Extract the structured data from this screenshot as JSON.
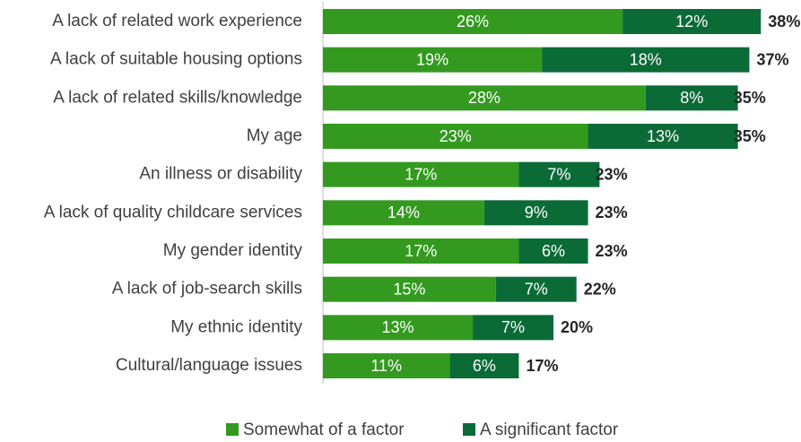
{
  "chart_data": {
    "type": "stacked_barh",
    "categories": [
      "A lack of related work experience",
      "A lack of suitable housing options",
      "A lack of related skills/knowledge",
      "My age",
      "An illness or disability",
      "A lack of quality childcare services",
      "My gender identity",
      "A lack of job-search skills",
      "My ethnic identity",
      "Cultural/language issues"
    ],
    "series": [
      {
        "name": "Somewhat of a factor",
        "color": "#339a1f",
        "values": [
          26,
          19,
          28,
          23,
          17,
          14,
          17,
          15,
          13,
          11
        ],
        "value_labels": [
          "26%",
          "19%",
          "28%",
          "23%",
          "17%",
          "14%",
          "17%",
          "15%",
          "13%",
          "11%"
        ]
      },
      {
        "name": "A significant factor",
        "color": "#0b6b37",
        "values": [
          12,
          18,
          8,
          13,
          7,
          9,
          6,
          7,
          7,
          6
        ],
        "value_labels": [
          "12%",
          "18%",
          "8%",
          "13%",
          "7%",
          "9%",
          "6%",
          "7%",
          "7%",
          "6%"
        ]
      }
    ],
    "totals": [
      38,
      37,
      35,
      35,
      23,
      23,
      23,
      22,
      20,
      17
    ],
    "total_labels": [
      "38%",
      "37%",
      "35%",
      "35%",
      "23%",
      "23%",
      "23%",
      "22%",
      "20%",
      "17%"
    ],
    "legend": "bottom"
  }
}
